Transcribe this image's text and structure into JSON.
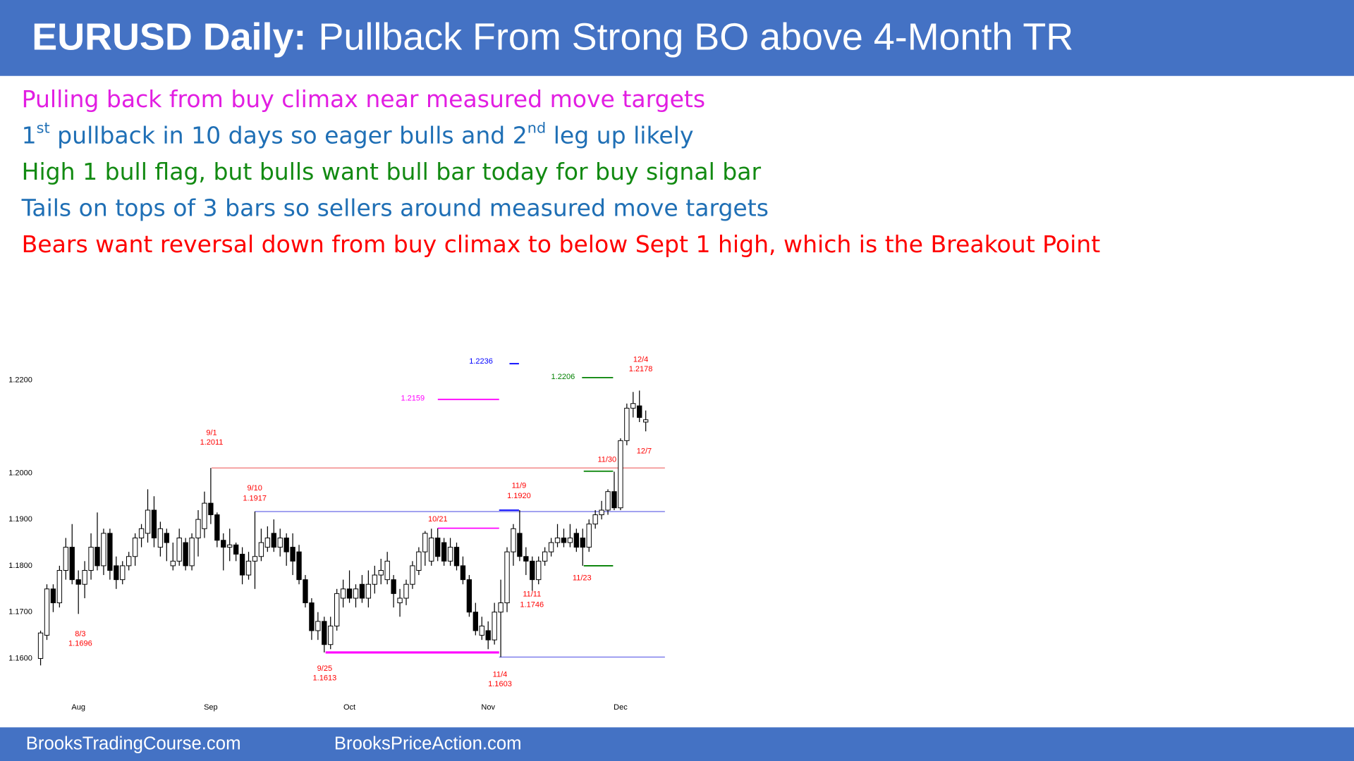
{
  "header": {
    "title_bold": "EURUSD Daily:",
    "title": "Pullback From Strong BO above 4-Month TR"
  },
  "bullets": [
    {
      "color": "#e21ee2",
      "parts": [
        "Pulling back from buy climax near measured move targets"
      ]
    },
    {
      "color": "#1f6fb5",
      "parts": [
        "1",
        {
          "text": "st",
          "sup": true
        },
        " pullback in 10 days so eager bulls and 2",
        {
          "text": "nd",
          "sup": true
        },
        " leg up likely"
      ]
    },
    {
      "color": "#128a12",
      "parts": [
        "High 1 bull flag, but bulls want bull bar today for buy signal bar"
      ]
    },
    {
      "color": "#1f6fb5",
      "parts": [
        "Tails on tops of 3 bars so sellers around measured move targets"
      ]
    },
    {
      "color": "#ff0000",
      "parts": [
        "Bears want reversal down from buy climax to below Sept 1 high, which is the Breakout Point"
      ]
    }
  ],
  "chart_data": {
    "type": "candlestick",
    "categories": [
      null,
      null,
      null,
      null,
      null,
      null,
      "Aug",
      null,
      null,
      null,
      null,
      null,
      null,
      null,
      null,
      null,
      null,
      null,
      null,
      null,
      null,
      null,
      null,
      null,
      null,
      null,
      null,
      "Sep",
      null,
      null,
      null,
      null,
      null,
      null,
      null,
      null,
      null,
      null,
      null,
      null,
      null,
      null,
      null,
      null,
      null,
      null,
      null,
      null,
      null,
      "Oct",
      null,
      null,
      null,
      null,
      null,
      null,
      null,
      null,
      null,
      null,
      null,
      null,
      null,
      null,
      null,
      null,
      null,
      null,
      null,
      null,
      null,
      "Nov",
      null,
      null,
      null,
      null,
      null,
      null,
      null,
      null,
      null,
      null,
      null,
      null,
      null,
      null,
      null,
      null,
      null,
      null,
      null,
      null,
      "Dec",
      null,
      null,
      null,
      null
    ],
    "open": [
      1.16,
      1.165,
      1.175,
      1.172,
      1.179,
      1.184,
      1.177,
      1.176,
      1.179,
      1.184,
      1.18,
      1.187,
      1.18,
      1.177,
      1.18,
      1.182,
      1.186,
      1.187,
      1.192,
      1.184,
      1.187,
      1.18,
      1.181,
      1.185,
      1.18,
      1.186,
      1.188,
      1.1935,
      1.191,
      1.1855,
      1.184,
      1.1845,
      1.1825,
      1.178,
      1.181,
      1.182,
      1.184,
      1.187,
      1.184,
      1.186,
      1.184,
      1.183,
      1.177,
      1.172,
      1.166,
      1.168,
      1.163,
      1.167,
      1.173,
      1.175,
      1.173,
      1.176,
      1.173,
      1.176,
      1.178,
      1.177,
      1.177,
      1.172,
      1.173,
      1.176,
      1.179,
      1.183,
      1.181,
      1.186,
      1.185,
      1.181,
      1.184,
      1.18,
      1.177,
      1.17,
      1.165,
      1.166,
      1.164,
      1.17,
      1.172,
      1.183,
      1.187,
      1.182,
      1.181,
      1.177,
      1.181,
      1.183,
      1.185,
      1.186,
      1.185,
      1.187,
      1.186,
      1.184,
      1.189,
      1.191,
      1.192,
      1.196,
      1.1925,
      1.207,
      1.214,
      1.2145,
      1.211
    ],
    "high": [
      1.166,
      1.176,
      1.176,
      1.18,
      1.186,
      1.189,
      1.179,
      1.181,
      1.187,
      1.1915,
      1.188,
      1.188,
      1.182,
      1.181,
      1.183,
      1.187,
      1.189,
      1.1965,
      1.195,
      1.1895,
      1.188,
      1.185,
      1.188,
      1.186,
      1.187,
      1.192,
      1.196,
      1.2011,
      1.1915,
      1.187,
      1.188,
      1.185,
      1.184,
      1.183,
      1.1917,
      1.188,
      1.1885,
      1.19,
      1.188,
      1.187,
      1.187,
      1.1845,
      1.178,
      1.173,
      1.17,
      1.169,
      1.169,
      1.175,
      1.177,
      1.179,
      1.176,
      1.178,
      1.179,
      1.18,
      1.1815,
      1.183,
      1.178,
      1.175,
      1.177,
      1.181,
      1.184,
      1.1875,
      1.188,
      1.1881,
      1.186,
      1.186,
      1.185,
      1.182,
      1.178,
      1.172,
      1.169,
      1.168,
      1.172,
      1.177,
      1.184,
      1.189,
      1.192,
      1.184,
      1.182,
      1.182,
      1.184,
      1.186,
      1.189,
      1.188,
      1.189,
      1.188,
      1.188,
      1.19,
      1.192,
      1.194,
      1.1965,
      1.2003,
      1.2075,
      1.215,
      1.2175,
      1.2178,
      1.2135
    ],
    "low": [
      1.1585,
      1.164,
      1.17,
      1.171,
      1.177,
      1.176,
      1.1696,
      1.173,
      1.177,
      1.179,
      1.178,
      1.177,
      1.175,
      1.176,
      1.179,
      1.18,
      1.184,
      1.185,
      1.184,
      1.182,
      1.181,
      1.179,
      1.18,
      1.179,
      1.179,
      1.182,
      1.186,
      1.189,
      1.184,
      1.179,
      1.181,
      1.181,
      1.176,
      1.177,
      1.175,
      1.181,
      1.183,
      1.183,
      1.182,
      1.18,
      1.178,
      1.176,
      1.171,
      1.164,
      1.164,
      1.1613,
      1.162,
      1.166,
      1.171,
      1.172,
      1.171,
      1.172,
      1.171,
      1.174,
      1.176,
      1.176,
      1.171,
      1.169,
      1.1715,
      1.175,
      1.178,
      1.18,
      1.18,
      1.181,
      1.18,
      1.18,
      1.179,
      1.176,
      1.169,
      1.165,
      1.164,
      1.162,
      1.163,
      1.1603,
      1.17,
      1.18,
      1.181,
      1.178,
      1.1746,
      1.176,
      1.18,
      1.182,
      1.184,
      1.184,
      1.184,
      1.183,
      1.18,
      1.183,
      1.188,
      1.19,
      1.191,
      1.192,
      1.192,
      1.206,
      1.212,
      1.211,
      1.209
    ],
    "close": [
      1.1655,
      1.175,
      1.172,
      1.179,
      1.184,
      1.177,
      1.176,
      1.179,
      1.184,
      1.18,
      1.187,
      1.179,
      1.177,
      1.18,
      1.182,
      1.186,
      1.188,
      1.192,
      1.186,
      1.188,
      1.185,
      1.181,
      1.186,
      1.18,
      1.186,
      1.19,
      1.1935,
      1.191,
      1.1855,
      1.184,
      1.1845,
      1.1825,
      1.178,
      1.181,
      1.182,
      1.185,
      1.186,
      1.184,
      1.186,
      1.183,
      1.181,
      1.177,
      1.172,
      1.166,
      1.168,
      1.163,
      1.167,
      1.174,
      1.175,
      1.173,
      1.175,
      1.173,
      1.176,
      1.178,
      1.179,
      1.181,
      1.174,
      1.173,
      1.176,
      1.18,
      1.183,
      1.187,
      1.186,
      1.182,
      1.181,
      1.184,
      1.18,
      1.177,
      1.17,
      1.166,
      1.167,
      1.164,
      1.17,
      1.172,
      1.183,
      1.188,
      1.182,
      1.181,
      1.177,
      1.181,
      1.183,
      1.185,
      1.186,
      1.185,
      1.186,
      1.184,
      1.184,
      1.189,
      1.191,
      1.192,
      1.196,
      1.1925,
      1.207,
      1.214,
      1.215,
      1.212,
      1.2115
    ],
    "up_color": "#ffffff",
    "down_color": "#000000",
    "ylim": [
      1.155,
      1.225
    ],
    "yticks": [
      {
        "value": 1.16,
        "label": "1.1600"
      },
      {
        "value": 1.17,
        "label": "1.1700"
      },
      {
        "value": 1.18,
        "label": "1.1800"
      },
      {
        "value": 1.19,
        "label": "1.1900"
      },
      {
        "value": 1.2,
        "label": "1.2000"
      },
      {
        "value": 1.22,
        "label": "1.2200"
      }
    ],
    "grid": false,
    "annotations": [
      {
        "date": "8/3",
        "price": 1.1696,
        "color": "#ff0000"
      },
      {
        "date": "9/1",
        "price": 1.2011,
        "color": "#ff0000",
        "line_color": "#f07070"
      },
      {
        "date": "9/10",
        "price": 1.1917,
        "color": "#ff0000",
        "line_color": "#6a6ae8"
      },
      {
        "date": "9/25",
        "price": 1.1613,
        "color": "#ff0000",
        "line_color": "#ff00ff"
      },
      {
        "date": "10/21",
        "color": "#ff0000"
      },
      {
        "date": "11/9",
        "price": {
          "value": 1.192,
          "label": "1.1920"
        },
        "color": "#ff0000",
        "line_color": "#0000ff"
      },
      {
        "date": "11/11",
        "price": 1.1746,
        "color": "#ff0000"
      },
      {
        "date": "11/4",
        "price": 1.1603,
        "color": "#ff0000",
        "line_color": "#6a6ae8"
      },
      {
        "date": "11/23",
        "color": "#ff0000"
      },
      {
        "date": "11/30",
        "color": "#ff0000"
      },
      {
        "date": "12/4",
        "price": 1.2178,
        "color": "#ff0000"
      },
      {
        "date": "12/7",
        "color": "#ff0000"
      },
      {
        "price": 1.2236,
        "color": "#0000ff",
        "line_color": "#0000ff"
      },
      {
        "price": 1.2206,
        "color": "#008000",
        "line_color": "#008000"
      },
      {
        "price": 1.2159,
        "color": "#ff00ff",
        "line_color": "#ff00ff"
      }
    ],
    "levels": [
      {
        "value": 1.1881,
        "color": "#ff00ff"
      },
      {
        "value": 1.18,
        "color": "#008000"
      },
      {
        "value": 1.2004,
        "color": "#008000"
      }
    ]
  },
  "footer": {
    "left": "BrooksTradingCourse.com",
    "right": "BrooksPriceAction.com"
  }
}
